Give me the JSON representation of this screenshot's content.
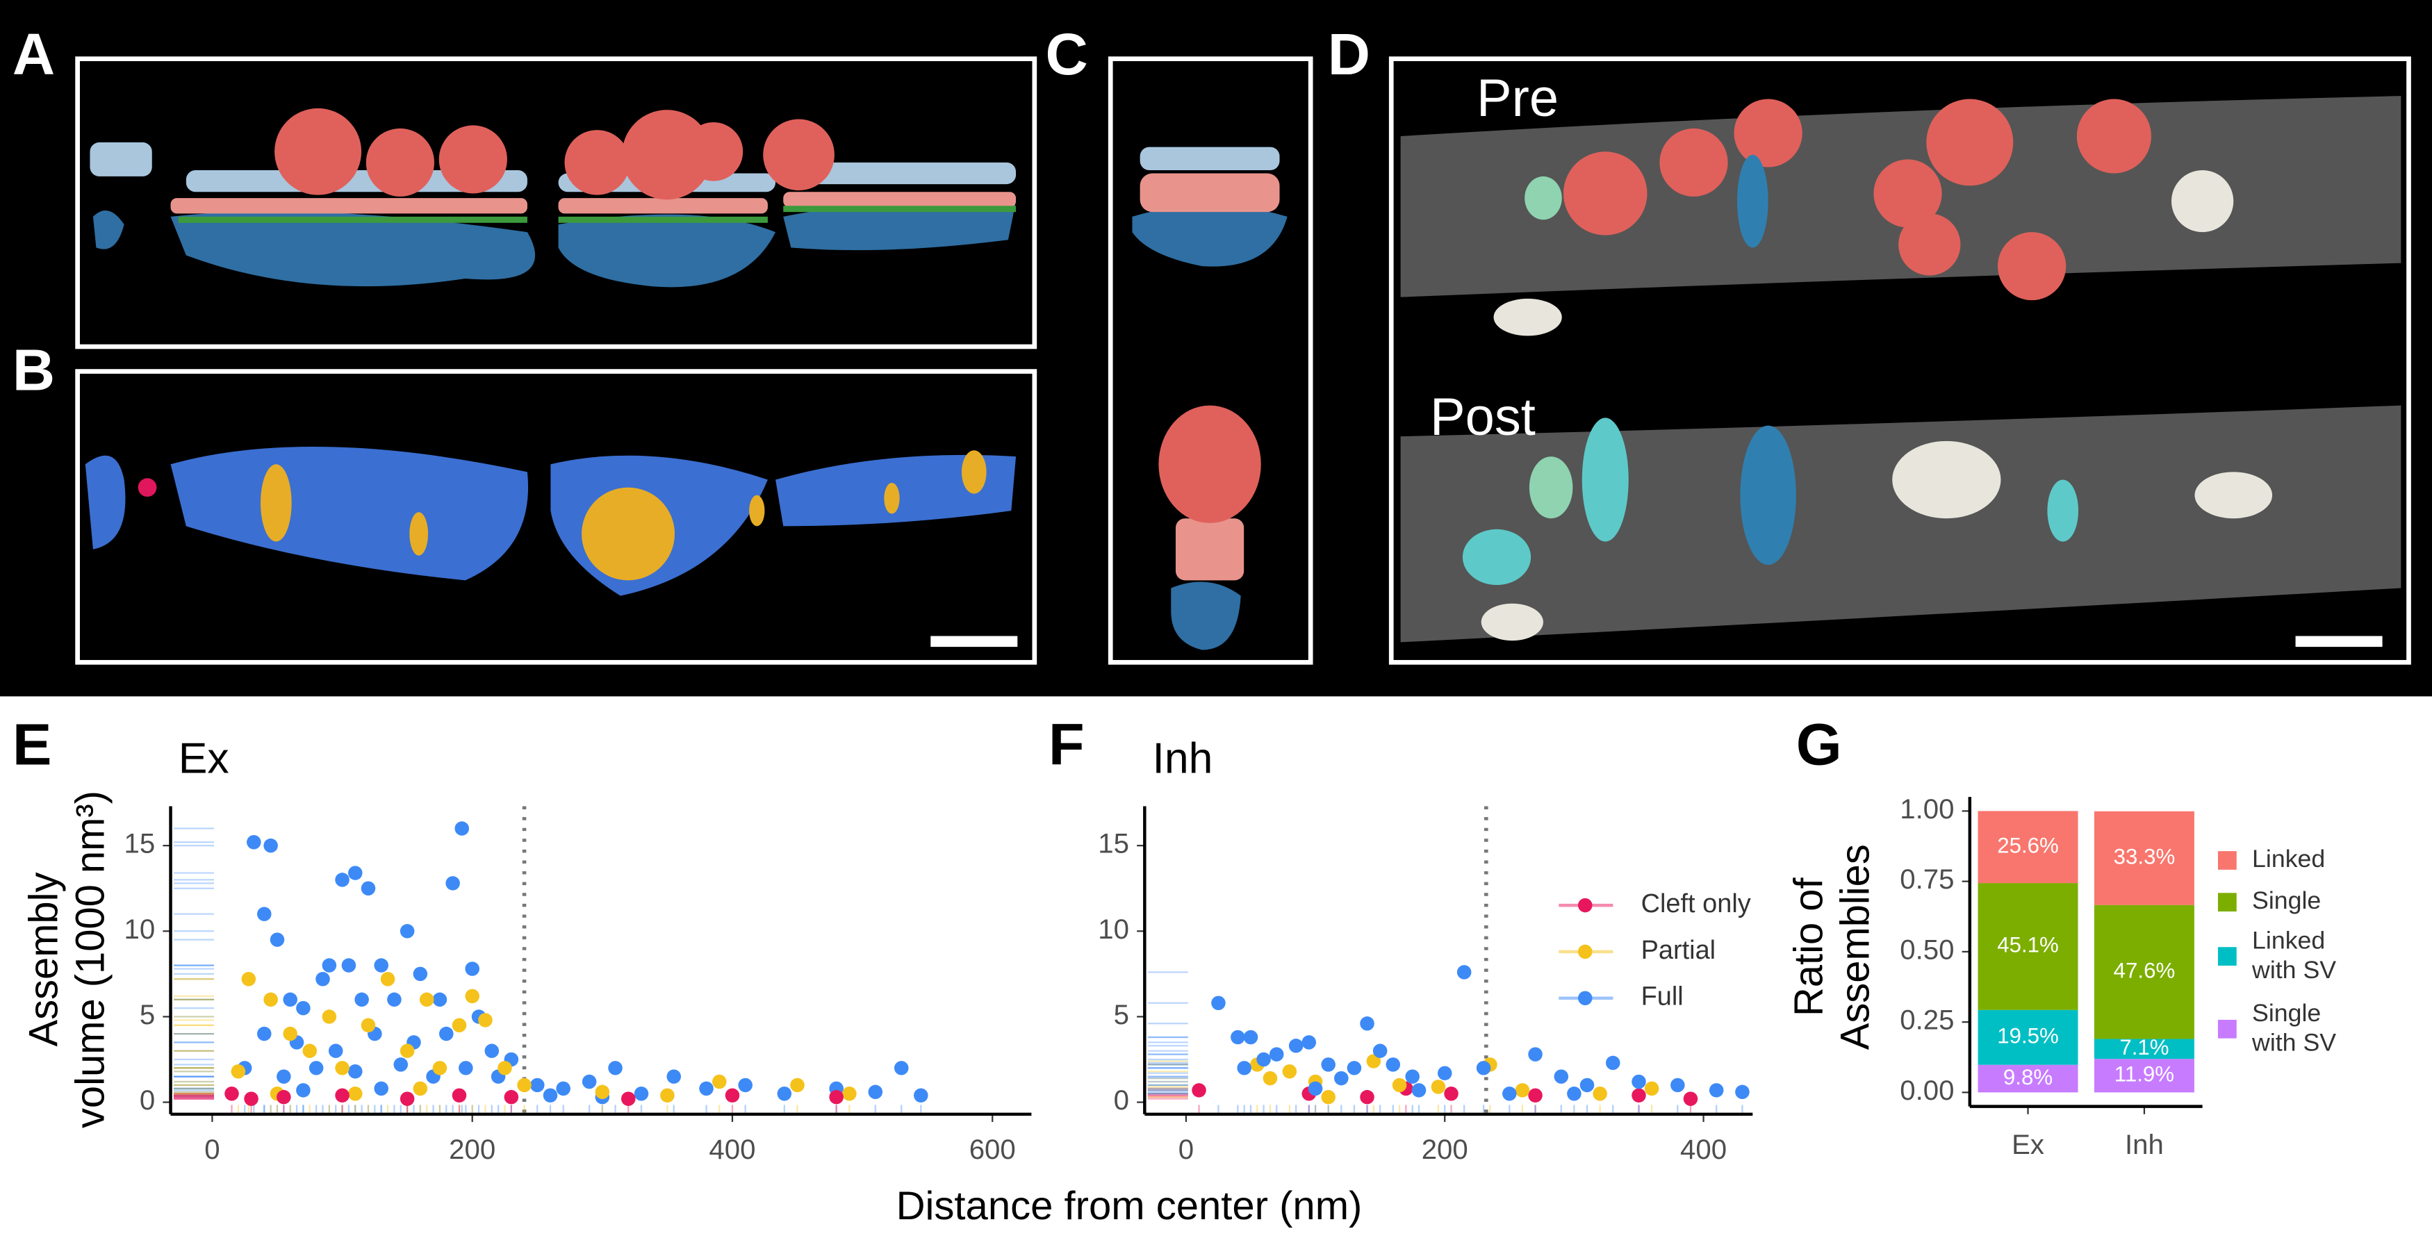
{
  "panels": {
    "labels": [
      "A",
      "B",
      "C",
      "D",
      "E",
      "F",
      "G"
    ],
    "image_labels": [
      "Pre",
      "Post"
    ]
  },
  "chart_data": [
    {
      "type": "scatter",
      "title": "Ex",
      "xlabel": "Distance from center (nm)",
      "ylabel": [
        "Assembly",
        "volume (1000 nm³)"
      ],
      "xlim": [
        -32,
        630
      ],
      "xticks": [
        0,
        200,
        400,
        600
      ],
      "ylim": [
        -0.7,
        17.3
      ],
      "yticks": [
        0,
        5,
        10,
        15
      ],
      "vline": 240,
      "series": [
        {
          "color": "#3d8af7",
          "x": [
            32,
            45,
            40,
            100,
            110,
            120,
            150,
            185,
            192,
            50,
            90,
            105,
            130,
            160,
            200,
            60,
            70,
            85,
            115,
            140,
            175,
            205,
            40,
            65,
            95,
            125,
            155,
            180,
            215,
            230,
            25,
            55,
            80,
            110,
            145,
            170,
            195,
            220,
            250,
            270,
            290,
            310,
            330,
            355,
            380,
            410,
            440,
            480,
            510,
            530,
            545,
            260,
            300,
            130,
            70
          ],
          "values": [
            15.2,
            15,
            11,
            13,
            13.4,
            12.5,
            10,
            12.8,
            16,
            9.5,
            8,
            8,
            8,
            7.5,
            7.8,
            6,
            5.5,
            7.2,
            6,
            6,
            6,
            5,
            4,
            3.5,
            3,
            4,
            3.5,
            4,
            3,
            2.5,
            2,
            1.5,
            2,
            1.8,
            2.2,
            1.5,
            2,
            1.5,
            1,
            0.8,
            1.2,
            2,
            0.5,
            1.5,
            0.8,
            1,
            0.5,
            0.8,
            0.6,
            2,
            0.4,
            0.4,
            0.3,
            0.8,
            0.7
          ]
        },
        {
          "color": "#f5c21b",
          "x": [
            28,
            45,
            60,
            75,
            90,
            100,
            120,
            135,
            150,
            165,
            175,
            190,
            200,
            210,
            225,
            240,
            20,
            50,
            110,
            160,
            300,
            390,
            450,
            490,
            350
          ],
          "values": [
            7.2,
            6,
            4,
            3,
            5,
            2,
            4.5,
            7.2,
            3,
            6,
            2,
            4.5,
            6.2,
            4.8,
            2,
            1,
            1.8,
            0.5,
            0.5,
            0.8,
            0.6,
            1.2,
            1,
            0.5,
            0.4
          ]
        },
        {
          "color": "#e8175d",
          "x": [
            15,
            55,
            100,
            150,
            190,
            230,
            320,
            400,
            480,
            30
          ],
          "values": [
            0.5,
            0.3,
            0.4,
            0.2,
            0.4,
            0.3,
            0.2,
            0.4,
            0.3,
            0.2
          ]
        }
      ]
    },
    {
      "type": "scatter",
      "title": "Inh",
      "xlim": [
        -32,
        438
      ],
      "xticks": [
        0,
        200,
        400
      ],
      "ylim": [
        -0.7,
        17.3
      ],
      "yticks": [
        0,
        5,
        10,
        15
      ],
      "vline": 232,
      "series": [
        {
          "name": "Cleft only",
          "color": "#e8175d",
          "x": [
            10,
            95,
            140,
            170,
            205,
            270,
            350,
            390
          ],
          "values": [
            0.7,
            0.5,
            0.3,
            0.8,
            0.5,
            0.4,
            0.4,
            0.2
          ]
        },
        {
          "name": "Partial",
          "color": "#f5c21b",
          "x": [
            55,
            65,
            80,
            100,
            145,
            165,
            195,
            235,
            260,
            320,
            360,
            110
          ],
          "values": [
            2.2,
            1.4,
            1.8,
            1.2,
            2.4,
            1,
            0.9,
            2.2,
            0.7,
            0.5,
            0.8,
            0.3
          ]
        },
        {
          "name": "Full",
          "color": "#3d8af7",
          "x": [
            25,
            40,
            50,
            60,
            70,
            85,
            95,
            110,
            130,
            140,
            150,
            160,
            175,
            200,
            215,
            230,
            270,
            290,
            310,
            330,
            350,
            380,
            410,
            430,
            100,
            180,
            250,
            45,
            120,
            300
          ],
          "values": [
            5.8,
            3.8,
            3.8,
            2.5,
            2.8,
            3.3,
            3.5,
            2.2,
            2,
            4.6,
            3,
            2.2,
            1.5,
            1.7,
            7.6,
            2,
            2.8,
            1.5,
            1,
            2.3,
            1.2,
            1,
            0.7,
            0.6,
            0.8,
            0.7,
            0.5,
            2,
            1.4,
            0.5
          ]
        }
      ]
    },
    {
      "type": "stacked_bar",
      "ylabel": [
        "Ratio of",
        "Assemblies"
      ],
      "categories": [
        "Ex",
        "Inh"
      ],
      "ylim": [
        -0.05,
        1.05
      ],
      "yticks": [
        {
          "value": 0,
          "label": "0.00"
        },
        {
          "value": 0.25,
          "label": "0.25"
        },
        {
          "value": 0.5,
          "label": "0.50"
        },
        {
          "value": 0.75,
          "label": "0.75"
        },
        {
          "value": 1,
          "label": "1.00"
        }
      ],
      "series": [
        {
          "name": "Single with SV",
          "color": "#c77cff",
          "values": [
            0.098,
            0.119
          ],
          "value_labels": [
            "9.8%",
            "11.9%"
          ]
        },
        {
          "name": "Linked with SV",
          "color": "#00bfc4",
          "values": [
            0.195,
            0.071
          ],
          "value_labels": [
            "19.5%",
            "7.1%"
          ]
        },
        {
          "name": "Single",
          "color": "#7cae00",
          "values": [
            0.451,
            0.476
          ],
          "value_labels": [
            "45.1%",
            "47.6%"
          ]
        },
        {
          "name": "Linked",
          "color": "#f8766d",
          "values": [
            0.256,
            0.333
          ],
          "value_labels": [
            "25.6%",
            "33.3%"
          ]
        }
      ]
    }
  ]
}
